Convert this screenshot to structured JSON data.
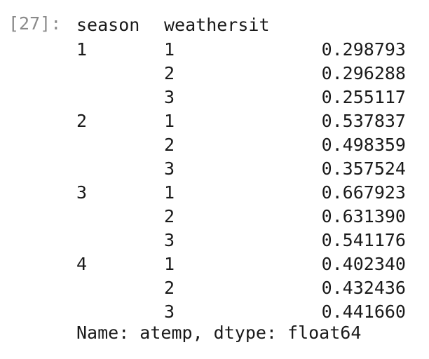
{
  "cell": {
    "prompt": "[27]:"
  },
  "series": {
    "index_names": [
      "season",
      "weathersit"
    ],
    "rows": [
      {
        "season": "1",
        "weathersit": "1",
        "value": "0.298793"
      },
      {
        "season": "",
        "weathersit": "2",
        "value": "0.296288"
      },
      {
        "season": "",
        "weathersit": "3",
        "value": "0.255117"
      },
      {
        "season": "2",
        "weathersit": "1",
        "value": "0.537837"
      },
      {
        "season": "",
        "weathersit": "2",
        "value": "0.498359"
      },
      {
        "season": "",
        "weathersit": "3",
        "value": "0.357524"
      },
      {
        "season": "3",
        "weathersit": "1",
        "value": "0.667923"
      },
      {
        "season": "",
        "weathersit": "2",
        "value": "0.631390"
      },
      {
        "season": "",
        "weathersit": "3",
        "value": "0.541176"
      },
      {
        "season": "4",
        "weathersit": "1",
        "value": "0.402340"
      },
      {
        "season": "",
        "weathersit": "2",
        "value": "0.432436"
      },
      {
        "season": "",
        "weathersit": "3",
        "value": "0.441660"
      }
    ],
    "footer": "Name: atemp, dtype: float64"
  }
}
